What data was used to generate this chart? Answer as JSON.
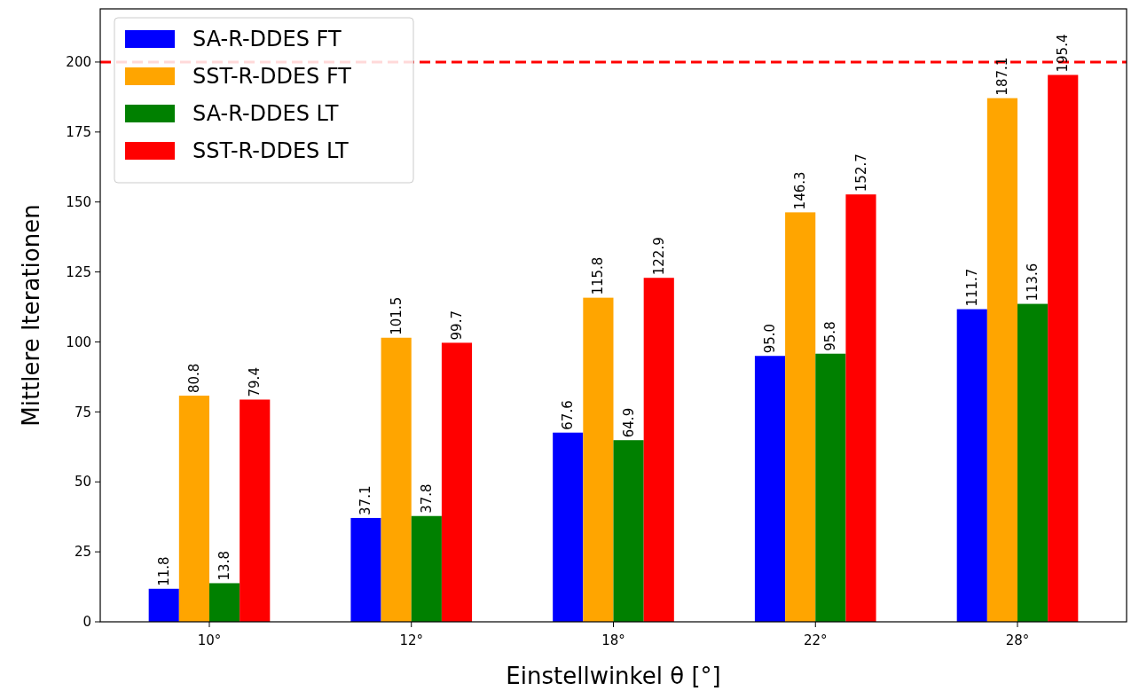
{
  "chart_data": {
    "type": "bar",
    "xlabel": "Einstellwinkel θ [°]",
    "ylabel": "Mittlere Iterationen",
    "categories": [
      "10°",
      "12°",
      "18°",
      "22°",
      "28°"
    ],
    "series": [
      {
        "name": "SA-R-DDES FT",
        "color": "#0000ff",
        "values": [
          11.8,
          37.1,
          67.6,
          95.0,
          111.7
        ],
        "value_labels": [
          "11.8",
          "37.1",
          "67.6",
          "95.0",
          "111.7"
        ]
      },
      {
        "name": "SST-R-DDES FT",
        "color": "#ffa500",
        "values": [
          80.8,
          101.5,
          115.8,
          146.3,
          187.1
        ],
        "value_labels": [
          "80.8",
          "101.5",
          "115.8",
          "146.3",
          "187.1"
        ]
      },
      {
        "name": "SA-R-DDES LT",
        "color": "#008000",
        "values": [
          13.8,
          37.8,
          64.9,
          95.8,
          113.6
        ],
        "value_labels": [
          "13.8",
          "37.8",
          "64.9",
          "95.8",
          "113.6"
        ]
      },
      {
        "name": "SST-R-DDES LT",
        "color": "#ff0000",
        "values": [
          79.4,
          99.7,
          122.9,
          152.7,
          195.4
        ],
        "value_labels": [
          "79.4",
          "99.7",
          "122.9",
          "152.7",
          "195.4"
        ]
      }
    ],
    "ylim": [
      0,
      219
    ],
    "yticks": [
      0,
      25,
      50,
      75,
      100,
      125,
      150,
      175,
      200
    ],
    "ref_lines": [
      {
        "axis": "y",
        "value": 200,
        "color": "#ff0000",
        "line_style": "dashed"
      }
    ],
    "legend": "top left",
    "grid": false
  }
}
